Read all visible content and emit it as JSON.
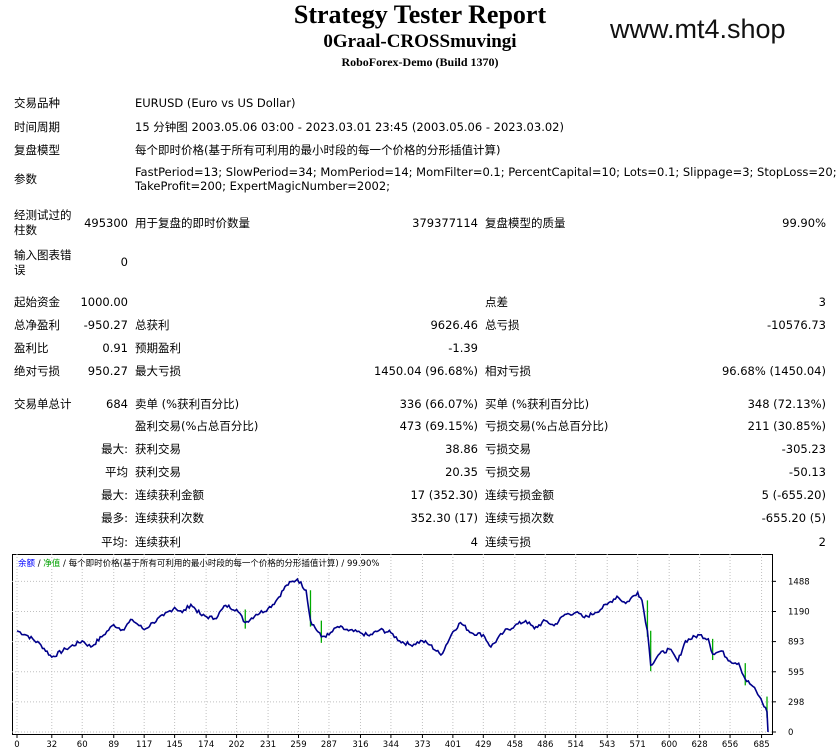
{
  "header": {
    "title": "Strategy Tester Report",
    "expert": "0Graal-CROSSmuvingi",
    "server": "RoboForex-Demo (Build 1370)",
    "watermark": "www.mt4.shop"
  },
  "settings": {
    "symbol_label": "交易品种",
    "symbol_value": "EURUSD (Euro vs US Dollar)",
    "period_label": "时间周期",
    "period_value": "15 分钟图 2003.05.06 03:00 - 2023.03.01 23:45 (2003.05.06 - 2023.03.02)",
    "model_label": "复盘模型",
    "model_value": "每个即时价格(基于所有可利用的最小时段的每一个价格的分形插值计算)",
    "params_label": "参数",
    "params_line1": "FastPeriod=13; SlowPeriod=34; MomPeriod=14; MomFilter=0.1; PercentCapital=10; Lots=0.1; Slippage=3; StopLoss=20;",
    "params_line2": "TakeProfit=200; ExpertMagicNumber=2002;"
  },
  "quality": {
    "bars_label_1": "经测试过的",
    "bars_label_2": "柱数",
    "bars_value": "495300",
    "ticks_label": "用于复盘的即时价数量",
    "ticks_value": "379377114",
    "quality_label": "复盘模型的质量",
    "quality_value": "99.90%",
    "errors_label_1": "输入图表错",
    "errors_label_2": "误",
    "errors_value": "0"
  },
  "stats": {
    "deposit_label": "起始资金",
    "deposit_value": "1000.00",
    "spread_label": "点差",
    "spread_value": "3",
    "net_label": "总净盈利",
    "net_value": "-950.27",
    "gross_profit_label": "总获利",
    "gross_profit_value": "9626.46",
    "gross_loss_label": "总亏损",
    "gross_loss_value": "-10576.73",
    "pf_label": "盈利比",
    "pf_value": "0.91",
    "payoff_label": "预期盈利",
    "payoff_value": "-1.39",
    "abs_dd_label": "绝对亏损",
    "abs_dd_value": "950.27",
    "max_dd_label": "最大亏损",
    "max_dd_value": "1450.04 (96.68%)",
    "rel_dd_label": "相对亏损",
    "rel_dd_value": "96.68% (1450.04)",
    "trades_label": "交易单总计",
    "trades_value": "684",
    "short_label": "卖单 (%获利百分比)",
    "short_value": "336 (66.07%)",
    "long_label": "买单 (%获利百分比)",
    "long_value": "348 (72.13%)",
    "profit_trades_label": "盈利交易(%占总百分比)",
    "profit_trades_value": "473 (69.15%)",
    "loss_trades_label": "亏损交易(%占总百分比)",
    "loss_trades_value": "211 (30.85%)",
    "largest_prefix": "最大:",
    "largest_profit_label": "获利交易",
    "largest_profit_value": "38.86",
    "largest_loss_label": "亏损交易",
    "largest_loss_value": "-305.23",
    "average_prefix": "平均",
    "average_profit_label": "获利交易",
    "average_profit_value": "20.35",
    "average_loss_label": "亏损交易",
    "average_loss_value": "-50.13",
    "max_prefix": "最大:",
    "max_consec_wins_label": "连续获利金额",
    "max_consec_wins_value": "17 (352.30)",
    "max_consec_losses_label": "连续亏损金额",
    "max_consec_losses_value": "5 (-655.20)",
    "maximal_prefix": "最多:",
    "maximal_consec_profit_label": "连续获利次数",
    "maximal_consec_profit_value": "352.30 (17)",
    "maximal_consec_loss_label": "连续亏损次数",
    "maximal_consec_loss_value": "-655.20 (5)",
    "avg_prefix": "平均:",
    "avg_consec_wins_label": "连续获利",
    "avg_consec_wins_value": "4",
    "avg_consec_losses_label": "连续亏损",
    "avg_consec_losses_value": "2"
  },
  "chart_data": {
    "type": "line",
    "legend": {
      "balance": "余额",
      "sep1": " / ",
      "equity": "净值",
      "sep2": " / ",
      "model": "每个即时价格(基于所有可利用的最小时段的每一个价格的分形插值计算)",
      "sep3": " / ",
      "quality": "99.90%"
    },
    "x_ticks": [
      0,
      32,
      60,
      89,
      117,
      145,
      174,
      202,
      231,
      259,
      287,
      316,
      344,
      373,
      401,
      429,
      458,
      486,
      514,
      543,
      571,
      600,
      628,
      656,
      685
    ],
    "y_ticks": [
      0,
      298,
      595,
      893,
      1190,
      1488
    ],
    "xlim": [
      0,
      690
    ],
    "ylim": [
      0,
      1600
    ],
    "colors": {
      "balance": "#00008b",
      "equity": "#00aa00",
      "grid": "#c0c0c0",
      "legend_balance": "#0000ff",
      "legend_equity": "#00a000"
    },
    "balance": [
      [
        0,
        1000
      ],
      [
        10,
        950
      ],
      [
        22,
        860
      ],
      [
        32,
        740
      ],
      [
        45,
        820
      ],
      [
        60,
        900
      ],
      [
        68,
        840
      ],
      [
        78,
        940
      ],
      [
        89,
        1060
      ],
      [
        97,
        1010
      ],
      [
        106,
        1110
      ],
      [
        117,
        1010
      ],
      [
        125,
        1080
      ],
      [
        135,
        1150
      ],
      [
        145,
        1230
      ],
      [
        152,
        1180
      ],
      [
        160,
        1260
      ],
      [
        170,
        1150
      ],
      [
        182,
        1120
      ],
      [
        192,
        1250
      ],
      [
        202,
        1210
      ],
      [
        210,
        1080
      ],
      [
        220,
        1160
      ],
      [
        231,
        1220
      ],
      [
        238,
        1290
      ],
      [
        248,
        1450
      ],
      [
        258,
        1510
      ],
      [
        266,
        1400
      ],
      [
        270,
        1100
      ],
      [
        280,
        940
      ],
      [
        287,
        960
      ],
      [
        295,
        1040
      ],
      [
        305,
        1000
      ],
      [
        316,
        980
      ],
      [
        324,
        950
      ],
      [
        334,
        1010
      ],
      [
        344,
        980
      ],
      [
        352,
        900
      ],
      [
        362,
        860
      ],
      [
        373,
        900
      ],
      [
        380,
        860
      ],
      [
        390,
        760
      ],
      [
        401,
        990
      ],
      [
        408,
        1080
      ],
      [
        418,
        980
      ],
      [
        429,
        960
      ],
      [
        436,
        840
      ],
      [
        448,
        990
      ],
      [
        458,
        1050
      ],
      [
        468,
        1100
      ],
      [
        476,
        1020
      ],
      [
        486,
        1100
      ],
      [
        494,
        1050
      ],
      [
        504,
        1160
      ],
      [
        514,
        1180
      ],
      [
        522,
        1130
      ],
      [
        532,
        1180
      ],
      [
        543,
        1260
      ],
      [
        552,
        1340
      ],
      [
        560,
        1270
      ],
      [
        571,
        1380
      ],
      [
        575,
        1300
      ],
      [
        580,
        1000
      ],
      [
        583,
        660
      ],
      [
        590,
        760
      ],
      [
        600,
        820
      ],
      [
        608,
        700
      ],
      [
        615,
        900
      ],
      [
        628,
        960
      ],
      [
        636,
        920
      ],
      [
        640,
        770
      ],
      [
        648,
        800
      ],
      [
        656,
        700
      ],
      [
        664,
        680
      ],
      [
        670,
        520
      ],
      [
        677,
        450
      ],
      [
        683,
        350
      ],
      [
        690,
        200
      ]
    ]
  }
}
